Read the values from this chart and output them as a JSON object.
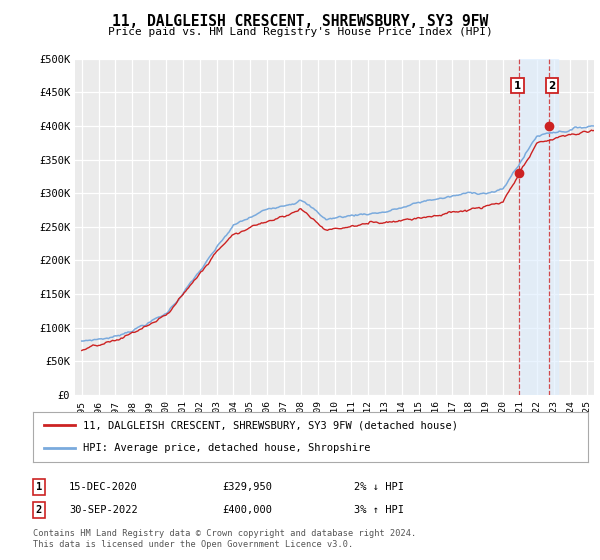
{
  "title": "11, DALGLEISH CRESCENT, SHREWSBURY, SY3 9FW",
  "subtitle": "Price paid vs. HM Land Registry's House Price Index (HPI)",
  "ylabel_ticks": [
    "£0",
    "£50K",
    "£100K",
    "£150K",
    "£200K",
    "£250K",
    "£300K",
    "£350K",
    "£400K",
    "£450K",
    "£500K"
  ],
  "ytick_vals": [
    0,
    50000,
    100000,
    150000,
    200000,
    250000,
    300000,
    350000,
    400000,
    450000,
    500000
  ],
  "xlim_left": 1994.6,
  "xlim_right": 2025.4,
  "ylim": [
    0,
    500000
  ],
  "hpi_color": "#7aaadd",
  "price_color": "#cc2222",
  "sale1_year": 2020.96,
  "sale1_price": 329950,
  "sale2_year": 2022.75,
  "sale2_price": 400000,
  "legend_sale_label": "11, DALGLEISH CRESCENT, SHREWSBURY, SY3 9FW (detached house)",
  "legend_hpi_label": "HPI: Average price, detached house, Shropshire",
  "note1_num": "1",
  "note1_date": "15-DEC-2020",
  "note1_price": "£329,950",
  "note1_change": "2% ↓ HPI",
  "note2_num": "2",
  "note2_date": "30-SEP-2022",
  "note2_price": "£400,000",
  "note2_change": "3% ↑ HPI",
  "footer": "Contains HM Land Registry data © Crown copyright and database right 2024.\nThis data is licensed under the Open Government Licence v3.0.",
  "background_color": "#ffffff",
  "plot_bg_color": "#ebebeb",
  "grid_color": "#ffffff",
  "highlight_bg": "#ddeeff",
  "highlight_alpha": 0.6
}
